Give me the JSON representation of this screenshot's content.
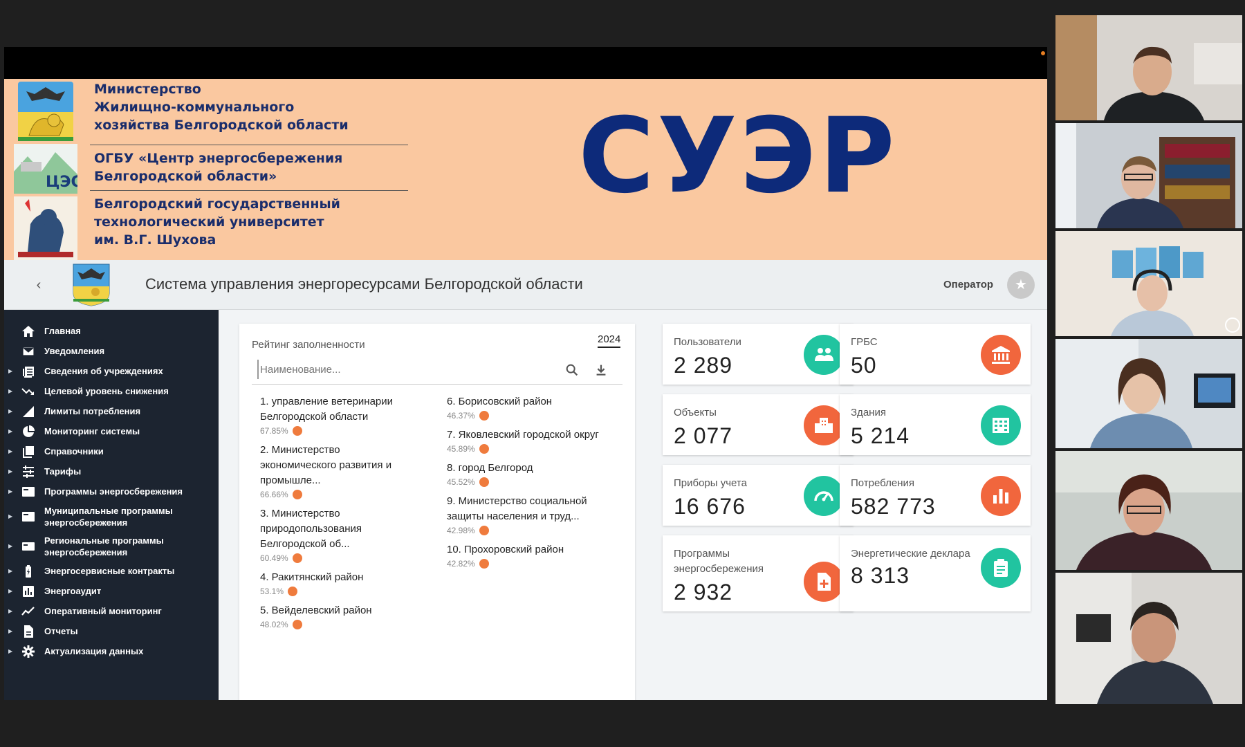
{
  "banner": {
    "org1": [
      "Министерство",
      "Жилищно-коммунального",
      "хозяйства Белгородской области"
    ],
    "org2": [
      "ОГБУ «Центр энергосбережения",
      "Белгородской области»"
    ],
    "org3": [
      "Белгородский государственный",
      "технологический университет",
      "им. В.Г. Шухова"
    ],
    "brand": "СУЭР",
    "logo2_text": "ЦЭС"
  },
  "header": {
    "title": "Система управления энергоресурсами Белгородской области",
    "role": "Оператор"
  },
  "sidebar": {
    "items": [
      {
        "label": "Главная",
        "icon": "home-icon",
        "expandable": false
      },
      {
        "label": "Уведомления",
        "icon": "mail-icon",
        "expandable": false
      },
      {
        "label": "Сведения об учреждениях",
        "icon": "list-icon",
        "expandable": true
      },
      {
        "label": "Целевой уровень снижения",
        "icon": "trend-down-icon",
        "expandable": true
      },
      {
        "label": "Лимиты потребления",
        "icon": "signal-icon",
        "expandable": true
      },
      {
        "label": "Мониторинг системы",
        "icon": "pie-icon",
        "expandable": true
      },
      {
        "label": "Справочники",
        "icon": "books-icon",
        "expandable": true
      },
      {
        "label": "Тарифы",
        "icon": "sliders-icon",
        "expandable": true
      },
      {
        "label": "Программы энергосбережения",
        "icon": "program-icon",
        "expandable": true
      },
      {
        "label": "Муниципальные программы энергосбережения",
        "icon": "program-icon",
        "expandable": true,
        "two_line": true
      },
      {
        "label": "Региональные программы энергосбережения",
        "icon": "card-icon",
        "expandable": true,
        "two_line": true
      },
      {
        "label": "Энергосервисные контракты",
        "icon": "battery-icon",
        "expandable": true
      },
      {
        "label": "Энергоаудит",
        "icon": "bar-chart-icon",
        "expandable": true
      },
      {
        "label": "Оперативный мониторинг",
        "icon": "line-chart-icon",
        "expandable": true
      },
      {
        "label": "Отчеты",
        "icon": "document-icon",
        "expandable": true
      },
      {
        "label": "Актуализация данных",
        "icon": "gear-icon",
        "expandable": true
      }
    ]
  },
  "rating": {
    "title": "Рейтинг заполненности",
    "year": "2024",
    "search_placeholder": "Наименование...",
    "items": [
      {
        "name": "1. управление ветеринарии Белгородской области",
        "pct": "67.85%"
      },
      {
        "name": "2. Министерство экономического развития и промышле...",
        "pct": "66.66%"
      },
      {
        "name": "3. Министерство природопользования Белгородской об...",
        "pct": "60.49%"
      },
      {
        "name": "4. Ракитянский район",
        "pct": "53.1%"
      },
      {
        "name": "5. Вейделевский район",
        "pct": "48.02%"
      },
      {
        "name": "6. Борисовский район",
        "pct": "46.37%"
      },
      {
        "name": "7. Яковлевский городской округ",
        "pct": "45.89%"
      },
      {
        "name": "8. город Белгород",
        "pct": "45.52%"
      },
      {
        "name": "9. Министерство социальной защиты населения и труд...",
        "pct": "42.98%"
      },
      {
        "name": "10. Прохоровский район",
        "pct": "42.82%"
      }
    ]
  },
  "stats": [
    {
      "label": "Пользователи",
      "value": "2 289",
      "icon": "users-icon",
      "color": "#21c4a0"
    },
    {
      "label": "ГРБС",
      "value": "50",
      "icon": "bank-icon",
      "color": "#f1663d"
    },
    {
      "label": "Объекты",
      "value": "2 077",
      "icon": "city-icon",
      "color": "#f1663d"
    },
    {
      "label": "Здания",
      "value": "5 214",
      "icon": "building-icon",
      "color": "#21c4a0"
    },
    {
      "label": "Приборы учета",
      "value": "16 676",
      "icon": "gauge-icon",
      "color": "#21c4a0"
    },
    {
      "label": "Потребления",
      "value": "582 773",
      "icon": "bar-chart-icon",
      "color": "#f1663d"
    },
    {
      "label": "Программы энергосбережения",
      "value": "2 932",
      "icon": "file-plus-icon",
      "color": "#f1663d"
    },
    {
      "label": "Энергетические деклара",
      "value": "8 313",
      "icon": "clipboard-icon",
      "color": "#21c4a0"
    }
  ],
  "colors": {
    "banner_bg": "#fac8a0",
    "brand_text": "#0d2a7a",
    "sidebar_bg": "#1c2430",
    "accent_teal": "#21c4a0",
    "accent_orange": "#f1663d",
    "rank_dot": "#ef7b3d"
  }
}
